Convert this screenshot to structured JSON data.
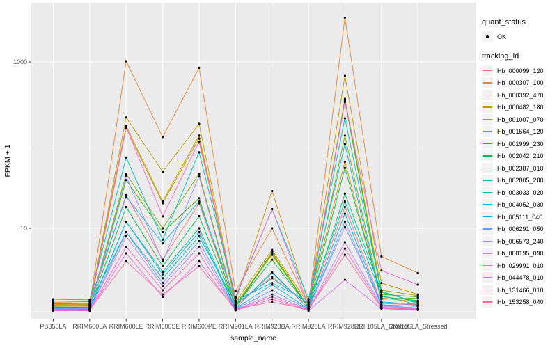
{
  "chart_data": {
    "type": "line",
    "title": "",
    "xlabel": "sample_name",
    "ylabel": "FPKM + 1",
    "y_scale": "log10",
    "grid": true,
    "legend_position": "right",
    "panel_bg": "#ebebeb",
    "grid_color": "#ffffff",
    "point_color": "#000000",
    "ylim": [
      0.82,
      4800
    ],
    "y_ticks": [
      {
        "label": "1000",
        "value": 1000
      },
      {
        "label": "10",
        "value": 10
      }
    ],
    "y_minor": [
      100,
      1
    ],
    "categories": [
      "PB350LA",
      "RRIM600LA",
      "RRIM600LE",
      "RRIM600SE",
      "RRIM600PE",
      "RRIM901LA",
      "RRIM928BA",
      "RRIM928LA",
      "RRIM928LE",
      "RRII105LA_Control",
      "RRII105LA_Stressed"
    ],
    "series": [
      {
        "name": "Hb_000099_120",
        "color": "#F8766D",
        "quant_status": "OK",
        "values": [
          1.17,
          1.16,
          25,
          4.2,
          20,
          1.18,
          2.6,
          1.17,
          18,
          1.25,
          1.2
        ]
      },
      {
        "name": "Hb_000307_100",
        "color": "#EA8331",
        "quant_status": "OK",
        "values": [
          1.2,
          1.19,
          1020,
          125,
          850,
          1.75,
          10,
          1.2,
          3400,
          4.6,
          2.9
        ]
      },
      {
        "name": "Hb_000392_470",
        "color": "#D89000",
        "quant_status": "OK",
        "values": [
          1.28,
          1.26,
          170,
          21,
          130,
          1.35,
          28,
          1.28,
          63,
          1.45,
          1.3
        ]
      },
      {
        "name": "Hb_000482_180",
        "color": "#C09B00",
        "quant_status": "OK",
        "values": [
          1.22,
          1.21,
          215,
          48,
          180,
          1.3,
          5.5,
          1.22,
          680,
          2.2,
          1.6
        ]
      },
      {
        "name": "Hb_001007_070",
        "color": "#A3A500",
        "quant_status": "OK",
        "values": [
          1.14,
          1.13,
          160,
          20,
          120,
          1.22,
          4.8,
          1.14,
          360,
          1.8,
          1.55
        ]
      },
      {
        "name": "Hb_001564_120",
        "color": "#7CAE00",
        "quant_status": "OK",
        "values": [
          1.12,
          1.11,
          45,
          10,
          45,
          1.15,
          5.2,
          1.12,
          130,
          1.4,
          1.45
        ]
      },
      {
        "name": "Hb_001999_230",
        "color": "#39B600",
        "quant_status": "OK",
        "values": [
          1.1,
          1.09,
          38,
          9,
          23,
          1.12,
          5.0,
          1.1,
          340,
          1.6,
          1.5
        ]
      },
      {
        "name": "Hb_002042_210",
        "color": "#00BB4E",
        "quant_status": "OK",
        "values": [
          1.13,
          1.12,
          18,
          3.5,
          14,
          1.16,
          4.2,
          1.13,
          53,
          1.5,
          1.35
        ]
      },
      {
        "name": "Hb_002387_010",
        "color": "#00BF7D",
        "quant_status": "OK",
        "values": [
          1.08,
          1.08,
          12,
          3.0,
          10,
          1.1,
          3.0,
          1.08,
          26,
          1.75,
          1.25
        ]
      },
      {
        "name": "Hb_002805_280",
        "color": "#00C0AF",
        "quant_status": "OK",
        "values": [
          1.24,
          1.23,
          9,
          2.5,
          8,
          1.25,
          2.5,
          1.24,
          21,
          1.55,
          1.2
        ]
      },
      {
        "name": "Hb_003033_020",
        "color": "#00BFC4",
        "quant_status": "OK",
        "values": [
          1.4,
          1.38,
          71,
          7.3,
          82,
          1.45,
          17,
          1.4,
          210,
          1.7,
          1.3
        ]
      },
      {
        "name": "Hb_004052_030",
        "color": "#00B8E7",
        "quant_status": "OK",
        "values": [
          1.33,
          1.31,
          24,
          6.6,
          21,
          1.35,
          2.2,
          1.33,
          103,
          1.3,
          1.22
        ]
      },
      {
        "name": "Hb_005111_040",
        "color": "#00ACFC",
        "quant_status": "OK",
        "values": [
          1.07,
          1.06,
          12,
          2.8,
          9,
          1.08,
          2.1,
          1.07,
          15,
          1.2,
          1.15
        ]
      },
      {
        "name": "Hb_006291_050",
        "color": "#619CFF",
        "quant_status": "OK",
        "values": [
          1.05,
          1.05,
          9,
          2.2,
          7,
          1.06,
          1.8,
          1.05,
          12,
          1.18,
          1.1
        ]
      },
      {
        "name": "Hb_006573_240",
        "color": "#9590FF",
        "quant_status": "OK",
        "values": [
          1.09,
          1.08,
          42,
          4.0,
          42,
          1.1,
          2.9,
          1.09,
          10.4,
          1.28,
          1.18
        ]
      },
      {
        "name": "Hb_008195_090",
        "color": "#BC81FF",
        "quant_status": "OK",
        "values": [
          1.04,
          1.04,
          8,
          2.0,
          6,
          1.05,
          1.6,
          1.04,
          6.8,
          1.15,
          1.08
        ]
      },
      {
        "name": "Hb_029991_010",
        "color": "#E76BF3",
        "quant_status": "OK",
        "values": [
          1.02,
          1.02,
          5,
          1.5,
          4,
          1.03,
          1.4,
          1.02,
          2.4,
          1.08,
          1.04
        ]
      },
      {
        "name": "Hb_044478_010",
        "color": "#FD61D1",
        "quant_status": "OK",
        "values": [
          1.18,
          1.17,
          165,
          13.9,
          110,
          1.5,
          17,
          1.18,
          330,
          3.1,
          2.1
        ]
      },
      {
        "name": "Hb_131466_010",
        "color": "#FF62BC",
        "quant_status": "OK",
        "values": [
          1.03,
          1.03,
          6,
          1.8,
          5,
          1.04,
          1.5,
          1.03,
          5.7,
          1.12,
          1.06
        ]
      },
      {
        "name": "Hb_153258_040",
        "color": "#FF6B94",
        "quant_status": "OK",
        "values": [
          1.06,
          1.05,
          4,
          1.6,
          3.5,
          1.07,
          1.3,
          1.06,
          4.8,
          1.1,
          1.05
        ]
      }
    ]
  },
  "legend": {
    "quant_title": "quant_status",
    "quant_items": [
      {
        "label": "OK",
        "marker": "point"
      }
    ],
    "tracking_title": "tracking_id"
  }
}
